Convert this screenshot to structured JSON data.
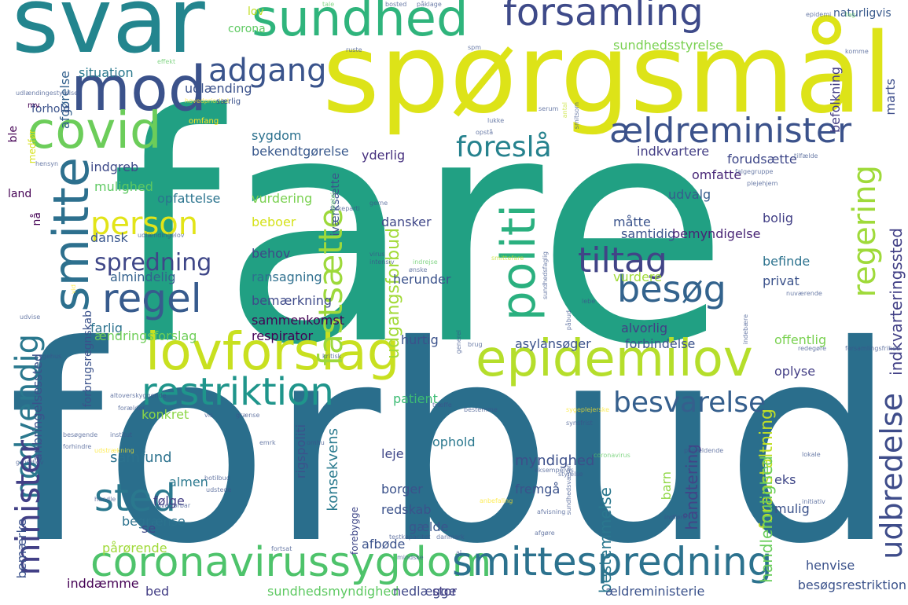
{
  "colors": {
    "c1": "#440154",
    "c2": "#3b528b",
    "c3": "#21918c",
    "c4": "#5ec962",
    "c5": "#fde725",
    "c6": "#2a788e",
    "c7": "#22a884",
    "c8": "#bddf26",
    "c9": "#414487",
    "c10": "#7ad151",
    "c11": "#355f8d",
    "c12": "#c2df23"
  },
  "words": [
    {
      "text": "fare",
      "color": "#21a083"
    },
    {
      "text": "forbud",
      "color": "#2a6e8c"
    },
    {
      "text": "spørgsmål",
      "color": "#dde318"
    },
    {
      "text": "svar",
      "color": "#23858e"
    },
    {
      "text": "forsamling",
      "color": "#3e4a89"
    },
    {
      "text": "sundhed",
      "color": "#2fb47c"
    },
    {
      "text": "mod",
      "color": "#3b528b"
    },
    {
      "text": "covid",
      "color": "#6ccd5a"
    },
    {
      "text": "smitte",
      "color": "#2d708e"
    },
    {
      "text": "lovforslag",
      "color": "#c8e020"
    },
    {
      "text": "epidemilov",
      "color": "#b5de2b"
    },
    {
      "text": "coronavirussygdom",
      "color": "#4ec36b"
    },
    {
      "text": "smittespredning",
      "color": "#2c728e"
    },
    {
      "text": "restriktion",
      "color": "#1f958b"
    },
    {
      "text": "politi",
      "color": "#2ab07f"
    },
    {
      "text": "regel",
      "color": "#375b8d"
    },
    {
      "text": "tiltag",
      "color": "#414487"
    },
    {
      "text": "besøg",
      "color": "#33638d"
    },
    {
      "text": "adgang",
      "color": "#3a548c"
    },
    {
      "text": "ældreminister",
      "color": "#3b528b"
    },
    {
      "text": "foreslå",
      "color": "#26828e"
    },
    {
      "text": "person",
      "color": "#e2e418"
    },
    {
      "text": "fastsætte",
      "color": "#9dd93b"
    },
    {
      "text": "regering",
      "color": "#9fda3a"
    },
    {
      "text": "besvarelse",
      "color": "#355f8d"
    },
    {
      "text": "nødvendig",
      "color": "#2a788e"
    },
    {
      "text": "minister",
      "color": "#424086"
    },
    {
      "text": "sted",
      "color": "#2a788e"
    },
    {
      "text": "spredning",
      "color": "#3f4788"
    },
    {
      "text": "udbredelse",
      "color": "#3e4c8a"
    },
    {
      "text": "udgangsforbud",
      "color": "#a2da37"
    },
    {
      "text": "konsekvens",
      "color": "#297a8e"
    },
    {
      "text": "myndighed",
      "color": "#3c4f8a"
    },
    {
      "text": "bestemmelse",
      "color": "#2a778e"
    },
    {
      "text": "foranstaltning",
      "color": "#c0df25"
    },
    {
      "text": "handlemulighed",
      "color": "#69cd5b"
    },
    {
      "text": "håndtering",
      "color": "#414487"
    },
    {
      "text": "indkvarteringssted",
      "color": "#424086"
    },
    {
      "text": "sundhedsstyrelse",
      "color": "#7ad151"
    },
    {
      "text": "naturligvis",
      "color": "#38598c"
    },
    {
      "text": "marts",
      "color": "#3d4d8a"
    },
    {
      "text": "befolkning",
      "color": "#433d84"
    },
    {
      "text": "afgørelse",
      "color": "#34618d"
    },
    {
      "text": "situation",
      "color": "#2a788e"
    },
    {
      "text": "udlænding",
      "color": "#3b528b"
    },
    {
      "text": "sygdom",
      "color": "#2c718e"
    },
    {
      "text": "bekendtgørelse",
      "color": "#38588c"
    },
    {
      "text": "yderlig",
      "color": "#46307e"
    },
    {
      "text": "iværksætte",
      "color": "#3b528b"
    },
    {
      "text": "indkvartere",
      "color": "#433e85"
    },
    {
      "text": "forudsætte",
      "color": "#3f4889"
    },
    {
      "text": "omfatte",
      "color": "#482677"
    },
    {
      "text": "indgreb",
      "color": "#3e4a89"
    },
    {
      "text": "mulighed",
      "color": "#5ec962"
    },
    {
      "text": "opfattelse",
      "color": "#2b748e"
    },
    {
      "text": "vurdering",
      "color": "#7ad151"
    },
    {
      "text": "udvalg",
      "color": "#365c8d"
    },
    {
      "text": "beboer",
      "color": "#d5e21a"
    },
    {
      "text": "dansker",
      "color": "#3f4788"
    },
    {
      "text": "måtte",
      "color": "#3a538b"
    },
    {
      "text": "samtidig",
      "color": "#3b528b"
    },
    {
      "text": "bolig",
      "color": "#424086"
    },
    {
      "text": "dansk",
      "color": "#39568c"
    },
    {
      "text": "bemyndigelse",
      "color": "#482475"
    },
    {
      "text": "behov",
      "color": "#3f4788"
    },
    {
      "text": "befinde",
      "color": "#2c728e"
    },
    {
      "text": "almindelig",
      "color": "#34618d"
    },
    {
      "text": "ransagning",
      "color": "#2e6f8e"
    },
    {
      "text": "herunder",
      "color": "#3b528b"
    },
    {
      "text": "vurdere",
      "color": "#a0da39"
    },
    {
      "text": "privat",
      "color": "#3b528b"
    },
    {
      "text": "bemærkning",
      "color": "#3e4a89"
    },
    {
      "text": "farlig",
      "color": "#2c728e"
    },
    {
      "text": "sammenkomst",
      "color": "#440154"
    },
    {
      "text": "alvorlig",
      "color": "#433e85"
    },
    {
      "text": "ændringsforslag",
      "color": "#6ece58"
    },
    {
      "text": "respirator",
      "color": "#440154"
    },
    {
      "text": "hurtig",
      "color": "#3b528b"
    },
    {
      "text": "forbindelse",
      "color": "#3b528b"
    },
    {
      "text": "offentlig",
      "color": "#7ad151"
    },
    {
      "text": "asylansøger",
      "color": "#3b528b"
    },
    {
      "text": "oplyse",
      "color": "#433e85"
    },
    {
      "text": "patient",
      "color": "#3dbc74"
    },
    {
      "text": "konkret",
      "color": "#8bd646"
    },
    {
      "text": "samfund",
      "color": "#2c728e"
    },
    {
      "text": "ophold",
      "color": "#2a788e"
    },
    {
      "text": "leje",
      "color": "#3f4788"
    },
    {
      "text": "almen",
      "color": "#2a788e"
    },
    {
      "text": "følge",
      "color": "#433e85"
    },
    {
      "text": "begrænse",
      "color": "#2c728e"
    },
    {
      "text": "borger",
      "color": "#3b528b"
    },
    {
      "text": "fremgå",
      "color": "#3b528b"
    },
    {
      "text": "barn",
      "color": "#8fd744"
    },
    {
      "text": "eks",
      "color": "#3f4788"
    },
    {
      "text": "mulig",
      "color": "#3b528b"
    },
    {
      "text": "redskab",
      "color": "#3b528b"
    },
    {
      "text": "se",
      "color": "#3e4989"
    },
    {
      "text": "gælde",
      "color": "#39568c"
    },
    {
      "text": "afbøde",
      "color": "#3b528b"
    },
    {
      "text": "pårørende",
      "color": "#a0da39"
    },
    {
      "text": "inddæmme",
      "color": "#440154"
    },
    {
      "text": "bed",
      "color": "#433e85"
    },
    {
      "text": "sundhedsmyndighed",
      "color": "#5ec962"
    },
    {
      "text": "nedlægge",
      "color": "#3f4788"
    },
    {
      "text": "stor",
      "color": "#433e85"
    },
    {
      "text": "ældreministerie",
      "color": "#3b528b"
    },
    {
      "text": "besøgsrestriktion",
      "color": "#3b528b"
    },
    {
      "text": "henvise",
      "color": "#3b528b"
    },
    {
      "text": "rigspoliti",
      "color": "#3b528b"
    },
    {
      "text": "forebygge",
      "color": "#3f4788"
    },
    {
      "text": "bemærke",
      "color": "#3b528b"
    },
    {
      "text": "anbringelsessted",
      "color": "#3b528b"
    },
    {
      "text": "forbrugsregnskab",
      "color": "#3b528b"
    },
    {
      "text": "nå",
      "color": "#440154"
    },
    {
      "text": "land",
      "color": "#440154"
    },
    {
      "text": "ble",
      "color": "#440154"
    },
    {
      "text": "medfør",
      "color": "#d5e21a"
    },
    {
      "text": "forhold",
      "color": "#3b528b"
    },
    {
      "text": "lov",
      "color": "#c2df23"
    },
    {
      "text": "corona",
      "color": "#5ec962"
    },
    {
      "text": "mv",
      "color": "#440154"
    },
    {
      "text": "udlændingestyrelse",
      "color": "#3b528b"
    },
    {
      "text": "effekt",
      "color": "#5ec962"
    },
    {
      "text": "tale",
      "color": "#5ec962"
    },
    {
      "text": "bosted",
      "color": "#3b528b"
    },
    {
      "text": "påklage",
      "color": "#3b528b"
    },
    {
      "text": "epidemi",
      "color": "#3b528b"
    },
    {
      "text": "tag",
      "color": "#5ec962"
    },
    {
      "text": "komme",
      "color": "#3b528b"
    },
    {
      "text": "spm",
      "color": "#3b528b"
    },
    {
      "text": "ruste",
      "color": "#3b528b"
    },
    {
      "text": "hovedprioritet",
      "color": "#fde725"
    },
    {
      "text": "særlig",
      "color": "#3b528b"
    },
    {
      "text": "omfang",
      "color": "#fde725"
    },
    {
      "text": "lukke",
      "color": "#3b528b"
    },
    {
      "text": "serum",
      "color": "#3b528b"
    },
    {
      "text": "smitsom",
      "color": "#3b528b"
    },
    {
      "text": "antal",
      "color": "#c2df23"
    },
    {
      "text": "opstå",
      "color": "#3b528b"
    },
    {
      "text": "falgegruppe",
      "color": "#3b528b"
    },
    {
      "text": "tilfælde",
      "color": "#3b528b"
    },
    {
      "text": "plejehjem",
      "color": "#3b528b"
    },
    {
      "text": "hensyn",
      "color": "#3b528b"
    },
    {
      "text": "gerne",
      "color": "#3b528b"
    },
    {
      "text": "folkeparti",
      "color": "#3b528b"
    },
    {
      "text": "udlændingelov",
      "color": "#3b528b"
    },
    {
      "text": "karetøj",
      "color": "#5ec962"
    },
    {
      "text": "vid",
      "color": "#fde725"
    },
    {
      "text": "virus",
      "color": "#3b528b"
    },
    {
      "text": "intensiv",
      "color": "#3b528b"
    },
    {
      "text": "indrejse",
      "color": "#5ec962"
    },
    {
      "text": "ønske",
      "color": "#3b528b"
    },
    {
      "text": "nuværende",
      "color": "#3b528b"
    },
    {
      "text": "sundhedsfaglig",
      "color": "#3b528b"
    },
    {
      "text": "smittefare",
      "color": "#c2df23"
    },
    {
      "text": "indebære",
      "color": "#3b528b"
    },
    {
      "text": "udvise",
      "color": "#3b528b"
    },
    {
      "text": "sygehus",
      "color": "#3b528b"
    },
    {
      "text": "kritisk",
      "color": "#3b528b"
    },
    {
      "text": "påbud",
      "color": "#3b528b"
    },
    {
      "text": "lebe",
      "color": "#3b528b"
    },
    {
      "text": "generel",
      "color": "#3b528b"
    },
    {
      "text": "brug",
      "color": "#3b528b"
    },
    {
      "text": "redegøre",
      "color": "#3b528b"
    },
    {
      "text": "forsamlingsfrihed",
      "color": "#3b528b"
    },
    {
      "text": "altoverskyggende",
      "color": "#3b528b"
    },
    {
      "text": "forælder",
      "color": "#3b528b"
    },
    {
      "text": "bestemme",
      "color": "#3b528b"
    },
    {
      "text": "sygeplejerske",
      "color": "#fde725"
    },
    {
      "text": "vis",
      "color": "#3b528b"
    },
    {
      "text": "grænse",
      "color": "#3b528b"
    },
    {
      "text": "træffe",
      "color": "#3b528b"
    },
    {
      "text": "besøgende",
      "color": "#3b528b"
    },
    {
      "text": "institut",
      "color": "#3b528b"
    },
    {
      "text": "emrk",
      "color": "#3b528b"
    },
    {
      "text": "synsfrist",
      "color": "#3b528b"
    },
    {
      "text": "grundlov",
      "color": "#3b528b"
    },
    {
      "text": "forhindre",
      "color": "#3b528b"
    },
    {
      "text": "udstrækning",
      "color": "#fde725"
    },
    {
      "text": "omhu",
      "color": "#3b528b"
    },
    {
      "text": "coronavirus",
      "color": "#5ec962"
    },
    {
      "text": "eksempelvis",
      "color": "#3b528b"
    },
    {
      "text": "sundhedsvæsen",
      "color": "#3b528b"
    },
    {
      "text": "styrelse",
      "color": "#3b528b"
    },
    {
      "text": "pågældende",
      "color": "#3b528b"
    },
    {
      "text": "lokale",
      "color": "#3b528b"
    },
    {
      "text": "initiativ",
      "color": "#3b528b"
    },
    {
      "text": "anbefaling",
      "color": "#fde725"
    },
    {
      "text": "botilbud",
      "color": "#3b528b"
    },
    {
      "text": "udstede",
      "color": "#3b528b"
    },
    {
      "text": "handle",
      "color": "#3b528b"
    },
    {
      "text": "overførbar",
      "color": "#3b528b"
    },
    {
      "text": "afvisning",
      "color": "#3b528b"
    },
    {
      "text": "afgøre",
      "color": "#3b528b"
    },
    {
      "text": "danmark",
      "color": "#3b528b"
    },
    {
      "text": "indføre",
      "color": "#3b528b"
    },
    {
      "text": "fortsat",
      "color": "#3b528b"
    },
    {
      "text": "testkapacitet",
      "color": "#3b528b"
    },
    {
      "text": "mindske",
      "color": "#3b528b"
    },
    {
      "text": "al",
      "color": "#3b528b"
    }
  ]
}
